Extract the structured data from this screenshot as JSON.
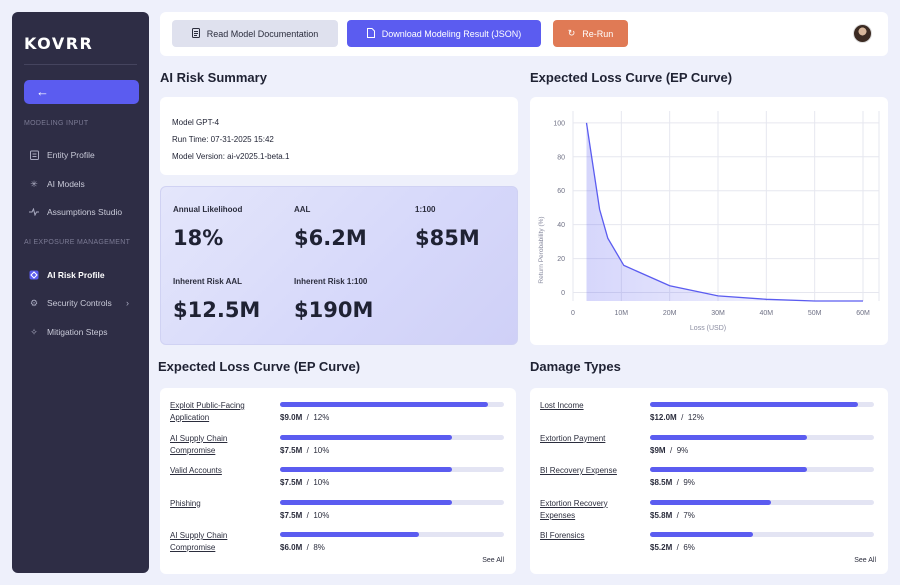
{
  "sidebar": {
    "logo": "KOVRR",
    "back_icon": "arrow-left-icon",
    "modeling_input_label": "MODELING INPUT",
    "modeling_items": [
      {
        "label": "Entity Profile",
        "icon": "clipboard-icon"
      },
      {
        "label": "AI Models",
        "icon": "sparkle-icon"
      },
      {
        "label": "Assumptions Studio",
        "icon": "pulse-icon"
      }
    ],
    "exposure_label": "AI EXPOSURE MANAGEMENT",
    "exposure_items": [
      {
        "label": "AI Risk Profile",
        "icon": "diamond-icon",
        "active": true
      },
      {
        "label": "Security Controls",
        "icon": "gear-icon",
        "chevron": "›"
      },
      {
        "label": "Mitigation Steps",
        "icon": "sparkle-icon"
      }
    ]
  },
  "topbar": {
    "docs_label": "Read Model Documentation",
    "download_label": "Download Modeling Result (JSON)",
    "rerun_label": "Re-Run",
    "accent": "#5b5cf0",
    "rerun_color": "#e07a55"
  },
  "summary": {
    "title": "AI Risk Summary",
    "model": "Model GPT-4",
    "run_time": "Run Time: 07-31-2025 15:42",
    "version": "Model Version: ai-v2025.1-beta.1",
    "metrics": [
      {
        "label": "Annual Likelihood",
        "value": "18%"
      },
      {
        "label": "AAL",
        "value": "$6.2M"
      },
      {
        "label": "1:100",
        "value": "$85M"
      },
      {
        "label": "Inherent Risk AAL",
        "value": "$12.5M"
      },
      {
        "label": "Inherent Risk 1:100",
        "value": "$190M"
      }
    ]
  },
  "ep_chart": {
    "title": "Expected Loss Curve (EP Curve)"
  },
  "chart_data": {
    "type": "line",
    "title": "Expected Loss Curve (EP Curve)",
    "xlabel": "Loss (USD)",
    "ylabel": "Return Perobability (%)",
    "x_tick_labels": [
      "0",
      "10M",
      "20M",
      "30M",
      "40M",
      "50M",
      "60M"
    ],
    "y_tick_labels": [
      "0",
      "20",
      "40",
      "60",
      "80",
      "100"
    ],
    "xlim": [
      0,
      60000000
    ],
    "ylim": [
      0,
      100
    ],
    "grid": true,
    "series": [
      {
        "x": [
          2800000,
          5500000,
          7200000,
          10500000,
          20000000,
          30000000,
          40000000,
          50000000,
          60000000
        ],
        "y": [
          100,
          49,
          32,
          16,
          4,
          -2,
          -4,
          -5,
          -5
        ]
      }
    ],
    "line_color": "#5b5cf0"
  },
  "techniques": {
    "title": "Expected Loss Curve (EP Curve)",
    "see_all": "See All",
    "rows": [
      {
        "label": "Exploit Public-Facing Application",
        "amount": "$9.0M",
        "pct": "12%",
        "fill": 0.93
      },
      {
        "label": "AI Supply Chain Compromise",
        "amount": "$7.5M",
        "pct": "10%",
        "fill": 0.77
      },
      {
        "label": "Valid Accounts",
        "amount": "$7.5M",
        "pct": "10%",
        "fill": 0.77
      },
      {
        "label": "Phishing",
        "amount": "$7.5M",
        "pct": "10%",
        "fill": 0.77
      },
      {
        "label": "AI Supply Chain Compromise",
        "amount": "$6.0M",
        "pct": "8%",
        "fill": 0.62
      }
    ]
  },
  "damage": {
    "title": "Damage Types",
    "see_all": "See All",
    "rows": [
      {
        "label": "Lost Income",
        "amount": "$12.0M",
        "pct": "12%",
        "fill": 0.93
      },
      {
        "label": "Extortion Payment",
        "amount": "$9M",
        "pct": "9%",
        "fill": 0.7
      },
      {
        "label": "BI Recovery Expense",
        "amount": "$8.5M",
        "pct": "9%",
        "fill": 0.7
      },
      {
        "label": "Extortion Recovery Expenses",
        "amount": "$5.8M",
        "pct": "7%",
        "fill": 0.54
      },
      {
        "label": "BI Forensics",
        "amount": "$5.2M",
        "pct": "6%",
        "fill": 0.46
      }
    ]
  }
}
